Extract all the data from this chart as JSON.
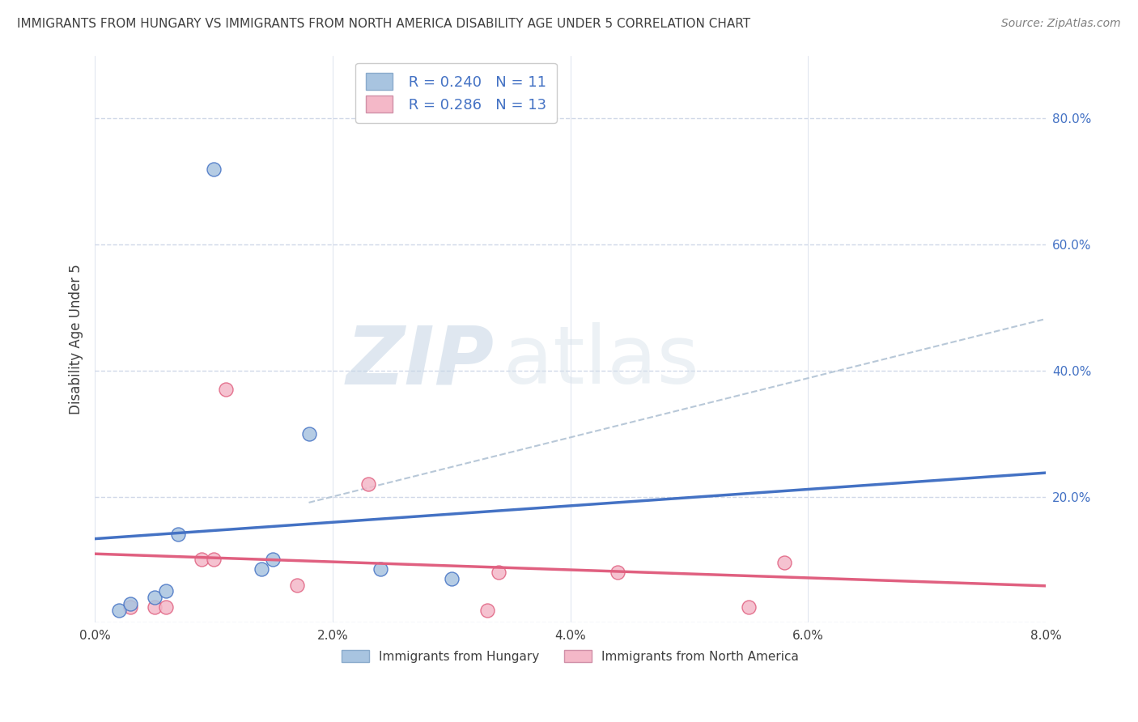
{
  "title": "IMMIGRANTS FROM HUNGARY VS IMMIGRANTS FROM NORTH AMERICA DISABILITY AGE UNDER 5 CORRELATION CHART",
  "source": "Source: ZipAtlas.com",
  "xlabel": "",
  "ylabel": "Disability Age Under 5",
  "xlim": [
    0.0,
    0.08
  ],
  "ylim": [
    0.0,
    0.9
  ],
  "ytick_vals": [
    0.0,
    0.2,
    0.4,
    0.6,
    0.8
  ],
  "xtick_vals": [
    0.0,
    0.02,
    0.04,
    0.06,
    0.08
  ],
  "blue_scatter_x": [
    0.01,
    0.002,
    0.003,
    0.005,
    0.006,
    0.007,
    0.014,
    0.015,
    0.018,
    0.024,
    0.03
  ],
  "blue_scatter_y": [
    0.72,
    0.02,
    0.03,
    0.04,
    0.05,
    0.14,
    0.085,
    0.1,
    0.3,
    0.085,
    0.07
  ],
  "pink_scatter_x": [
    0.003,
    0.005,
    0.006,
    0.009,
    0.01,
    0.011,
    0.017,
    0.023,
    0.033,
    0.034,
    0.044,
    0.055,
    0.058
  ],
  "pink_scatter_y": [
    0.025,
    0.025,
    0.025,
    0.1,
    0.1,
    0.37,
    0.06,
    0.22,
    0.02,
    0.08,
    0.08,
    0.025,
    0.095
  ],
  "blue_R": 0.24,
  "blue_N": 11,
  "pink_R": 0.286,
  "pink_N": 13,
  "blue_color": "#a8c4e0",
  "pink_color": "#f4b8c8",
  "blue_line_color": "#4472c4",
  "pink_line_color": "#e06080",
  "dashed_line_color": "#b8c8d8",
  "legend_blue_label": "Immigrants from Hungary",
  "legend_pink_label": "Immigrants from North America",
  "background_color": "#ffffff",
  "grid_color": "#d0d8e8",
  "title_color": "#404040",
  "source_color": "#808080",
  "watermark_zip": "ZIP",
  "watermark_atlas": "atlas",
  "r_label_color": "#4472c4"
}
